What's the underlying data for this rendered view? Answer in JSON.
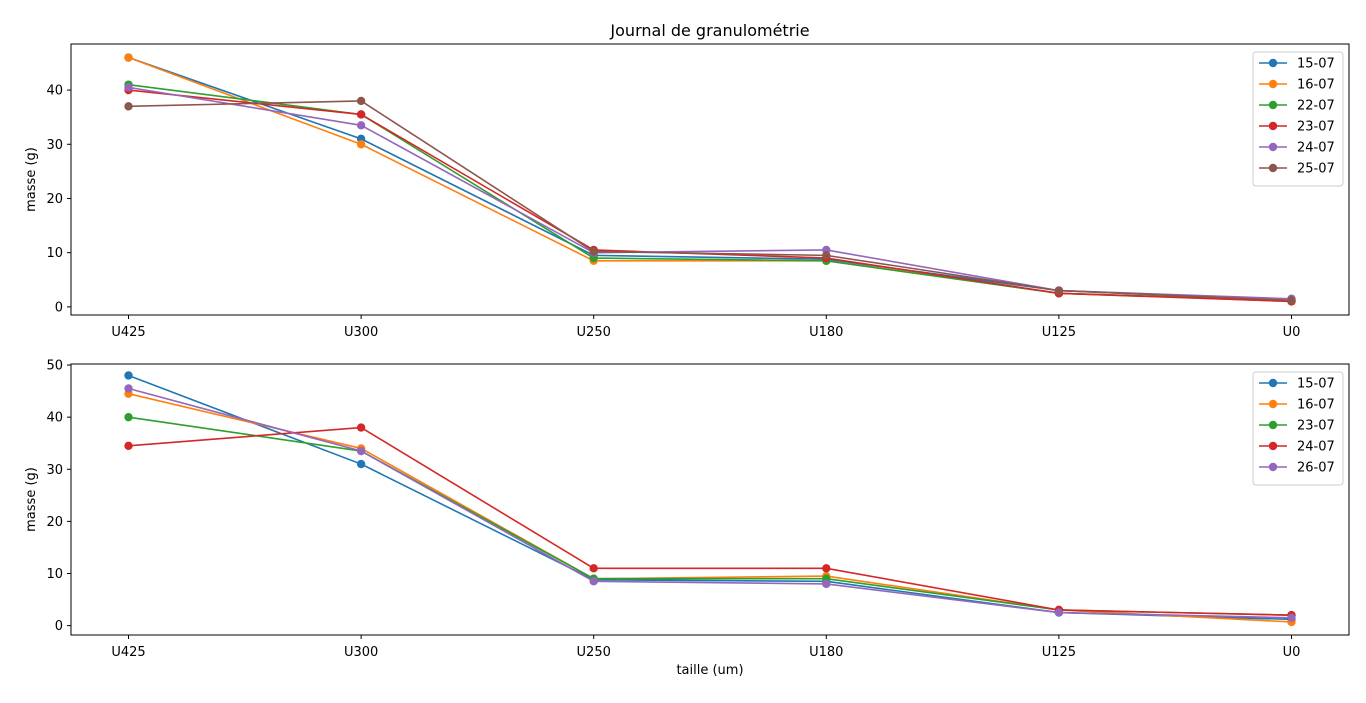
{
  "figure_title": "Journal de granulométrie",
  "chart_data": [
    {
      "type": "line",
      "title": "Journal de granulométrie",
      "xlabel": "",
      "ylabel": "masse (g)",
      "categories": [
        "U425",
        "U300",
        "U250",
        "U180",
        "U125",
        "U0"
      ],
      "ylim": [
        -1.5,
        48.5
      ],
      "yticks": [
        0,
        10,
        20,
        30,
        40
      ],
      "grid": false,
      "legend": "top-right",
      "series": [
        {
          "name": "15-07",
          "color": "#1f77b4",
          "values": [
            46.0,
            31.0,
            9.5,
            8.8,
            3.0,
            1.2
          ]
        },
        {
          "name": "16-07",
          "color": "#ff7f0e",
          "values": [
            46.0,
            30.0,
            8.5,
            8.5,
            2.5,
            1.0
          ]
        },
        {
          "name": "22-07",
          "color": "#2ca02c",
          "values": [
            41.0,
            35.5,
            9.0,
            8.5,
            2.5,
            1.2
          ]
        },
        {
          "name": "23-07",
          "color": "#d62728",
          "values": [
            40.0,
            35.5,
            10.5,
            9.0,
            2.5,
            1.0
          ]
        },
        {
          "name": "24-07",
          "color": "#9467bd",
          "values": [
            40.5,
            33.5,
            10.0,
            10.5,
            3.0,
            1.5
          ]
        },
        {
          "name": "25-07",
          "color": "#8c564b",
          "values": [
            37.0,
            38.0,
            10.2,
            9.5,
            3.0,
            1.2
          ]
        }
      ]
    },
    {
      "type": "line",
      "title": "",
      "xlabel": "taille (um)",
      "ylabel": "masse (g)",
      "categories": [
        "U425",
        "U300",
        "U250",
        "U180",
        "U125",
        "U0"
      ],
      "ylim": [
        -1.8,
        50.2
      ],
      "yticks": [
        0,
        10,
        20,
        30,
        40,
        50
      ],
      "grid": false,
      "legend": "top-right",
      "series": [
        {
          "name": "15-07",
          "color": "#1f77b4",
          "values": [
            48.0,
            31.0,
            8.8,
            8.5,
            2.5,
            1.2
          ]
        },
        {
          "name": "16-07",
          "color": "#ff7f0e",
          "values": [
            44.5,
            34.0,
            9.0,
            9.5,
            3.0,
            0.7
          ]
        },
        {
          "name": "23-07",
          "color": "#2ca02c",
          "values": [
            40.0,
            33.5,
            9.0,
            9.0,
            3.0,
            2.0
          ]
        },
        {
          "name": "24-07",
          "color": "#d62728",
          "values": [
            34.5,
            38.0,
            11.0,
            11.0,
            3.0,
            2.0
          ]
        },
        {
          "name": "26-07",
          "color": "#9467bd",
          "values": [
            45.5,
            33.5,
            8.5,
            8.0,
            2.5,
            1.5
          ]
        }
      ]
    }
  ]
}
